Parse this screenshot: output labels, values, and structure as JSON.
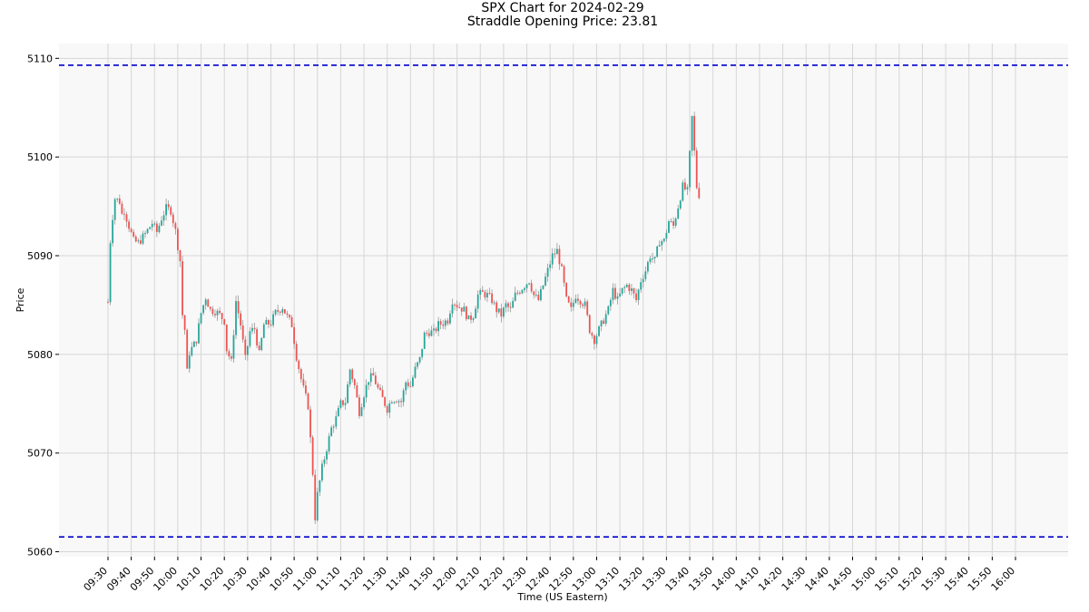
{
  "chart_data": {
    "type": "candlestick",
    "title": "SPX Chart for 2024-02-29",
    "subtitle": "Straddle Opening Price: 23.81",
    "xlabel": "Time (US Eastern)",
    "ylabel": "Price",
    "ylim": [
      5059.5,
      5111.5
    ],
    "y_ticks": [
      5060,
      5070,
      5080,
      5090,
      5100,
      5110
    ],
    "x_ticks": [
      "09:30",
      "09:40",
      "09:50",
      "10:00",
      "10:10",
      "10:20",
      "10:30",
      "10:40",
      "10:50",
      "11:00",
      "11:10",
      "11:20",
      "11:30",
      "11:40",
      "11:50",
      "12:00",
      "12:10",
      "12:20",
      "12:30",
      "12:40",
      "12:50",
      "13:00",
      "13:10",
      "13:20",
      "13:30",
      "13:40",
      "13:50",
      "14:00",
      "14:10",
      "14:20",
      "14:30",
      "14:40",
      "14:50",
      "15:00",
      "15:10",
      "15:20",
      "15:30",
      "15:40",
      "15:50",
      "16:00"
    ],
    "grid": true,
    "reference_lines": [
      {
        "value": 5109.3,
        "color": "#0000cc",
        "style": "dashed"
      },
      {
        "value": 5061.5,
        "color": "#0000cc",
        "style": "dashed"
      }
    ],
    "up_color": "#26a69a",
    "down_color": "#ef5350",
    "price_path": [
      [
        "09:30",
        5085.3
      ],
      [
        "09:31",
        5091.5
      ],
      [
        "09:32",
        5094.0
      ],
      [
        "09:33",
        5095.8
      ],
      [
        "09:35",
        5095.5
      ],
      [
        "09:36",
        5094.2
      ],
      [
        "09:37",
        5094.6
      ],
      [
        "09:39",
        5093.0
      ],
      [
        "09:41",
        5091.5
      ],
      [
        "09:43",
        5091.3
      ],
      [
        "09:46",
        5092.2
      ],
      [
        "09:49",
        5093.3
      ],
      [
        "09:51",
        5092.4
      ],
      [
        "09:53",
        5093.8
      ],
      [
        "09:55",
        5094.8
      ],
      [
        "09:57",
        5094.6
      ],
      [
        "09:59",
        5092.5
      ],
      [
        "10:00",
        5091.0
      ],
      [
        "10:01",
        5089.5
      ],
      [
        "10:02",
        5084.0
      ],
      [
        "10:03",
        5082.5
      ],
      [
        "10:04",
        5078.2
      ],
      [
        "10:05",
        5080.2
      ],
      [
        "10:07",
        5081.0
      ],
      [
        "10:08",
        5081.5
      ],
      [
        "10:10",
        5084.2
      ],
      [
        "10:12",
        5085.8
      ],
      [
        "10:14",
        5084.5
      ],
      [
        "10:16",
        5084.4
      ],
      [
        "10:18",
        5084.0
      ],
      [
        "10:20",
        5083.4
      ],
      [
        "10:21",
        5080.5
      ],
      [
        "10:23",
        5079.2
      ],
      [
        "10:25",
        5085.4
      ],
      [
        "10:27",
        5083.0
      ],
      [
        "10:29",
        5079.5
      ],
      [
        "10:31",
        5082.3
      ],
      [
        "10:33",
        5082.6
      ],
      [
        "10:35",
        5080.0
      ],
      [
        "10:37",
        5083.0
      ],
      [
        "10:40",
        5083.2
      ],
      [
        "10:42",
        5084.2
      ],
      [
        "10:45",
        5084.8
      ],
      [
        "10:47",
        5083.8
      ],
      [
        "10:49",
        5083.0
      ],
      [
        "10:51",
        5079.8
      ],
      [
        "10:53",
        5077.5
      ],
      [
        "10:54",
        5076.5
      ],
      [
        "10:56",
        5074.8
      ],
      [
        "10:58",
        5068.0
      ],
      [
        "10:59",
        5063.5
      ],
      [
        "11:00",
        5065.8
      ],
      [
        "11:02",
        5068.5
      ],
      [
        "11:04",
        5070.5
      ],
      [
        "11:06",
        5072.5
      ],
      [
        "11:08",
        5073.5
      ],
      [
        "11:10",
        5075.0
      ],
      [
        "11:12",
        5075.2
      ],
      [
        "11:14",
        5078.5
      ],
      [
        "11:16",
        5076.8
      ],
      [
        "11:18",
        5074.2
      ],
      [
        "11:20",
        5076.0
      ],
      [
        "11:22",
        5077.5
      ],
      [
        "11:24",
        5077.8
      ],
      [
        "11:26",
        5076.5
      ],
      [
        "11:28",
        5075.5
      ],
      [
        "11:30",
        5074.5
      ],
      [
        "11:32",
        5075.5
      ],
      [
        "11:34",
        5075.5
      ],
      [
        "11:36",
        5075.2
      ],
      [
        "11:38",
        5077.2
      ],
      [
        "11:40",
        5076.8
      ],
      [
        "11:42",
        5078.5
      ],
      [
        "11:44",
        5079.5
      ],
      [
        "11:46",
        5082.0
      ],
      [
        "11:48",
        5082.3
      ],
      [
        "11:50",
        5082.2
      ],
      [
        "11:52",
        5083.0
      ],
      [
        "11:54",
        5083.2
      ],
      [
        "11:56",
        5083.5
      ],
      [
        "11:58",
        5085.5
      ],
      [
        "12:00",
        5085.0
      ],
      [
        "12:03",
        5084.5
      ],
      [
        "12:05",
        5083.5
      ],
      [
        "12:07",
        5084.0
      ],
      [
        "12:09",
        5086.0
      ],
      [
        "12:11",
        5086.2
      ],
      [
        "12:13",
        5086.0
      ],
      [
        "12:15",
        5085.5
      ],
      [
        "12:17",
        5084.5
      ],
      [
        "12:19",
        5084.0
      ],
      [
        "12:21",
        5085.0
      ],
      [
        "12:23",
        5084.5
      ],
      [
        "12:25",
        5086.0
      ],
      [
        "12:27",
        5086.5
      ],
      [
        "12:29",
        5087.0
      ],
      [
        "12:31",
        5087.5
      ],
      [
        "12:33",
        5086.0
      ],
      [
        "12:35",
        5085.5
      ],
      [
        "12:37",
        5087.0
      ],
      [
        "12:39",
        5088.5
      ],
      [
        "12:41",
        5090.0
      ],
      [
        "12:43",
        5090.5
      ],
      [
        "12:45",
        5088.5
      ],
      [
        "12:47",
        5085.5
      ],
      [
        "12:49",
        5084.5
      ],
      [
        "12:51",
        5086.0
      ],
      [
        "12:53",
        5085.5
      ],
      [
        "12:55",
        5085.0
      ],
      [
        "12:57",
        5082.5
      ],
      [
        "12:59",
        5081.5
      ],
      [
        "13:01",
        5082.5
      ],
      [
        "13:03",
        5083.5
      ],
      [
        "13:05",
        5084.5
      ],
      [
        "13:07",
        5086.5
      ],
      [
        "13:09",
        5085.5
      ],
      [
        "13:11",
        5086.5
      ],
      [
        "13:13",
        5087.0
      ],
      [
        "13:15",
        5086.5
      ],
      [
        "13:17",
        5085.5
      ],
      [
        "13:19",
        5087.5
      ],
      [
        "13:21",
        5088.5
      ],
      [
        "13:23",
        5090.0
      ],
      [
        "13:25",
        5089.5
      ],
      [
        "13:27",
        5091.5
      ],
      [
        "13:29",
        5091.5
      ],
      [
        "13:31",
        5093.5
      ],
      [
        "13:33",
        5093.0
      ],
      [
        "13:35",
        5095.0
      ],
      [
        "13:37",
        5097.0
      ],
      [
        "13:39",
        5096.5
      ],
      [
        "13:41",
        5104.0
      ],
      [
        "13:43",
        5097.0
      ],
      [
        "13:44",
        5096.2
      ]
    ]
  }
}
